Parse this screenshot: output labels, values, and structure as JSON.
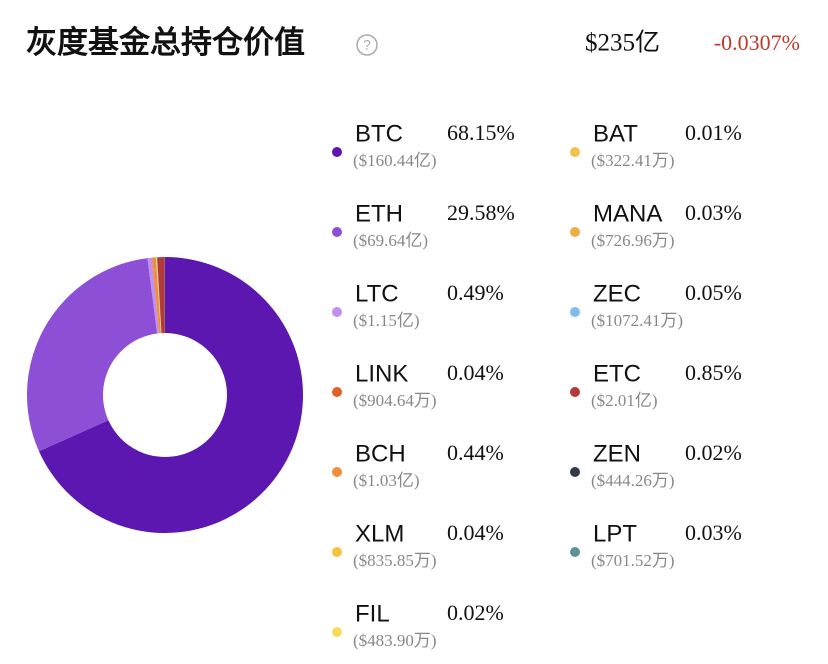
{
  "header": {
    "title": "灰度基金总持仓价值",
    "total": "$235亿",
    "change": "-0.0307%"
  },
  "chart_data": {
    "type": "pie",
    "categories": [
      "BTC",
      "ETH",
      "LTC",
      "LINK",
      "BCH",
      "XLM",
      "FIL",
      "BAT",
      "MANA",
      "ZEC",
      "ETC",
      "ZEN",
      "LPT"
    ],
    "values": [
      68.15,
      29.58,
      0.49,
      0.04,
      0.44,
      0.04,
      0.02,
      0.01,
      0.03,
      0.05,
      0.85,
      0.02,
      0.03
    ],
    "value_labels": [
      "68.15%",
      "29.58%",
      "0.49%",
      "0.04%",
      "0.44%",
      "0.04%",
      "0.02%",
      "0.01%",
      "0.03%",
      "0.05%",
      "0.85%",
      "0.02%",
      "0.03%"
    ],
    "amount_labels": [
      "($160.44亿)",
      "($69.64亿)",
      "($1.15亿)",
      "($904.64万)",
      "($1.03亿)",
      "($835.85万)",
      "($483.90万)",
      "($322.41万)",
      "($726.96万)",
      "($1072.41万)",
      "($2.01亿)",
      "($444.26万)",
      "($701.52万)"
    ],
    "colors": [
      "#5b17b0",
      "#8d4fd6",
      "#c18ef2",
      "#e0622a",
      "#ef8f3a",
      "#f5c242",
      "#f5dc5a",
      "#f2c14e",
      "#f0ad42",
      "#7dbdf0",
      "#b23a3a",
      "#333a48",
      "#5f9199"
    ],
    "donut": true
  }
}
